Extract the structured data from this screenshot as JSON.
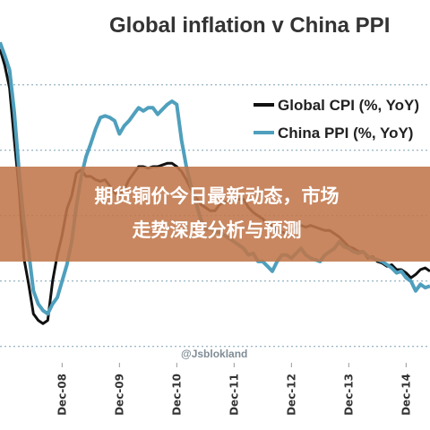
{
  "overlay": {
    "line1": "期货铜价今日最新动态，市场",
    "line2": "走势深度分析与预测",
    "color": "#c0764a"
  },
  "watermark": "@Jsblokland",
  "chart_data": {
    "type": "line",
    "title": "Global inflation v China PPI",
    "xlabel": "",
    "ylabel": "",
    "grid": true,
    "legend_position": "top-right",
    "x": [
      "Nov-07",
      "Dec-07",
      "Jan-08",
      "Feb-08",
      "Mar-08",
      "Apr-08",
      "May-08",
      "Jun-08",
      "Jul-08",
      "Aug-08",
      "Sep-08",
      "Oct-08",
      "Nov-08",
      "Dec-08",
      "Jan-09",
      "Feb-09",
      "Mar-09",
      "Apr-09",
      "May-09",
      "Jun-09",
      "Jul-09",
      "Aug-09",
      "Sep-09",
      "Oct-09",
      "Nov-09",
      "Dec-09",
      "Jan-10",
      "Feb-10",
      "Mar-10",
      "Apr-10",
      "May-10",
      "Jun-10",
      "Jul-10",
      "Aug-10",
      "Sep-10",
      "Oct-10",
      "Nov-10",
      "Dec-10",
      "Jan-11",
      "Feb-11",
      "Mar-11",
      "Apr-11",
      "May-11",
      "Jun-11",
      "Jul-11",
      "Aug-11",
      "Sep-11",
      "Oct-11",
      "Nov-11",
      "Dec-11",
      "Jan-12",
      "Feb-12",
      "Mar-12",
      "Apr-12",
      "May-12",
      "Jun-12",
      "Jul-12",
      "Aug-12",
      "Sep-12",
      "Oct-12",
      "Nov-12",
      "Dec-12",
      "Jan-13",
      "Feb-13",
      "Mar-13",
      "Apr-13",
      "May-13",
      "Jun-13",
      "Jul-13",
      "Aug-13",
      "Sep-13",
      "Oct-13",
      "Nov-13",
      "Dec-13",
      "Jan-14",
      "Feb-14",
      "Mar-14",
      "Apr-14",
      "May-14",
      "Jun-14",
      "Jul-14",
      "Aug-14",
      "Sep-14",
      "Oct-14",
      "Nov-14",
      "Dec-14",
      "Jan-15",
      "Feb-15",
      "Mar-15",
      "Apr-15",
      "May-15"
    ],
    "x_tick_labels": [
      "Dec-08",
      "Dec-09",
      "Dec-10",
      "Dec-11",
      "Dec-12",
      "Dec-13",
      "Dec-14"
    ],
    "ylim": [
      -9,
      11
    ],
    "y_gridlines": [
      -8,
      -4,
      0,
      4,
      8
    ],
    "series": [
      {
        "name": "Global CPI (%, YoY)",
        "color": "#111111",
        "values": [
          10.2,
          9.2,
          7.8,
          4.6,
          1.6,
          -2.6,
          -4.2,
          -6.0,
          -6.4,
          -6.6,
          -6.4,
          -4.0,
          -2.4,
          -1.2,
          0.4,
          1.2,
          2.6,
          2.8,
          2.4,
          2.4,
          2.2,
          2.1,
          2.2,
          1.8,
          1.4,
          1.2,
          1.6,
          2.2,
          2.6,
          3.0,
          3.0,
          2.9,
          3.0,
          3.0,
          3.1,
          3.2,
          3.2,
          3.0,
          2.7,
          2.2,
          1.6,
          1.1,
          0.7,
          0.5,
          0.3,
          0.3,
          0.7,
          0.8,
          0.9,
          1.0,
          1.0,
          1.0,
          0.5,
          0.2,
          0.0,
          -0.2,
          -0.5,
          -0.6,
          -0.9,
          -1.0,
          -1.1,
          -0.9,
          -0.7,
          -0.6,
          -0.7,
          -0.6,
          -0.7,
          -0.8,
          -0.9,
          -0.9,
          -1.1,
          -1.3,
          -1.6,
          -1.9,
          -2.0,
          -2.2,
          -2.2,
          -2.6,
          -2.5,
          -2.8,
          -2.9,
          -3.1,
          -3.0,
          -3.3,
          -3.3,
          -3.5,
          -3.8,
          -3.6,
          -3.3,
          -3.2,
          -3.4
        ]
      },
      {
        "name": "China PPI (%, YoY)",
        "color": "#4f9fbd",
        "values": [
          10.6,
          9.8,
          8.9,
          6.3,
          2.7,
          -0.4,
          -2.2,
          -4.6,
          -5.4,
          -5.8,
          -6.0,
          -5.4,
          -5.0,
          -4.0,
          -3.0,
          -1.6,
          0.6,
          2.4,
          3.6,
          4.4,
          5.3,
          6.0,
          6.1,
          6.0,
          5.8,
          5.0,
          5.5,
          5.8,
          6.2,
          6.6,
          6.4,
          6.6,
          6.6,
          6.2,
          6.5,
          6.8,
          7.0,
          6.8,
          4.6,
          3.0,
          1.8,
          0.8,
          -0.2,
          -0.8,
          -0.8,
          -1.0,
          -1.0,
          -1.2,
          -1.4,
          -1.6,
          -1.8,
          -2.0,
          -2.4,
          -2.3,
          -2.8,
          -2.8,
          -3.1,
          -3.4,
          -2.8,
          -2.4,
          -2.4,
          -2.6,
          -2.3,
          -2.0,
          -2.4,
          -2.6,
          -2.7,
          -2.8,
          -2.4,
          -2.2,
          -2.0,
          -1.6,
          -1.9,
          -2.0,
          -2.2,
          -2.3,
          -2.2,
          -2.5,
          -2.6,
          -2.7,
          -2.8,
          -3.0,
          -3.2,
          -3.5,
          -3.4,
          -3.8,
          -4.0,
          -4.6,
          -4.2,
          -4.4,
          -4.3
        ]
      }
    ]
  }
}
